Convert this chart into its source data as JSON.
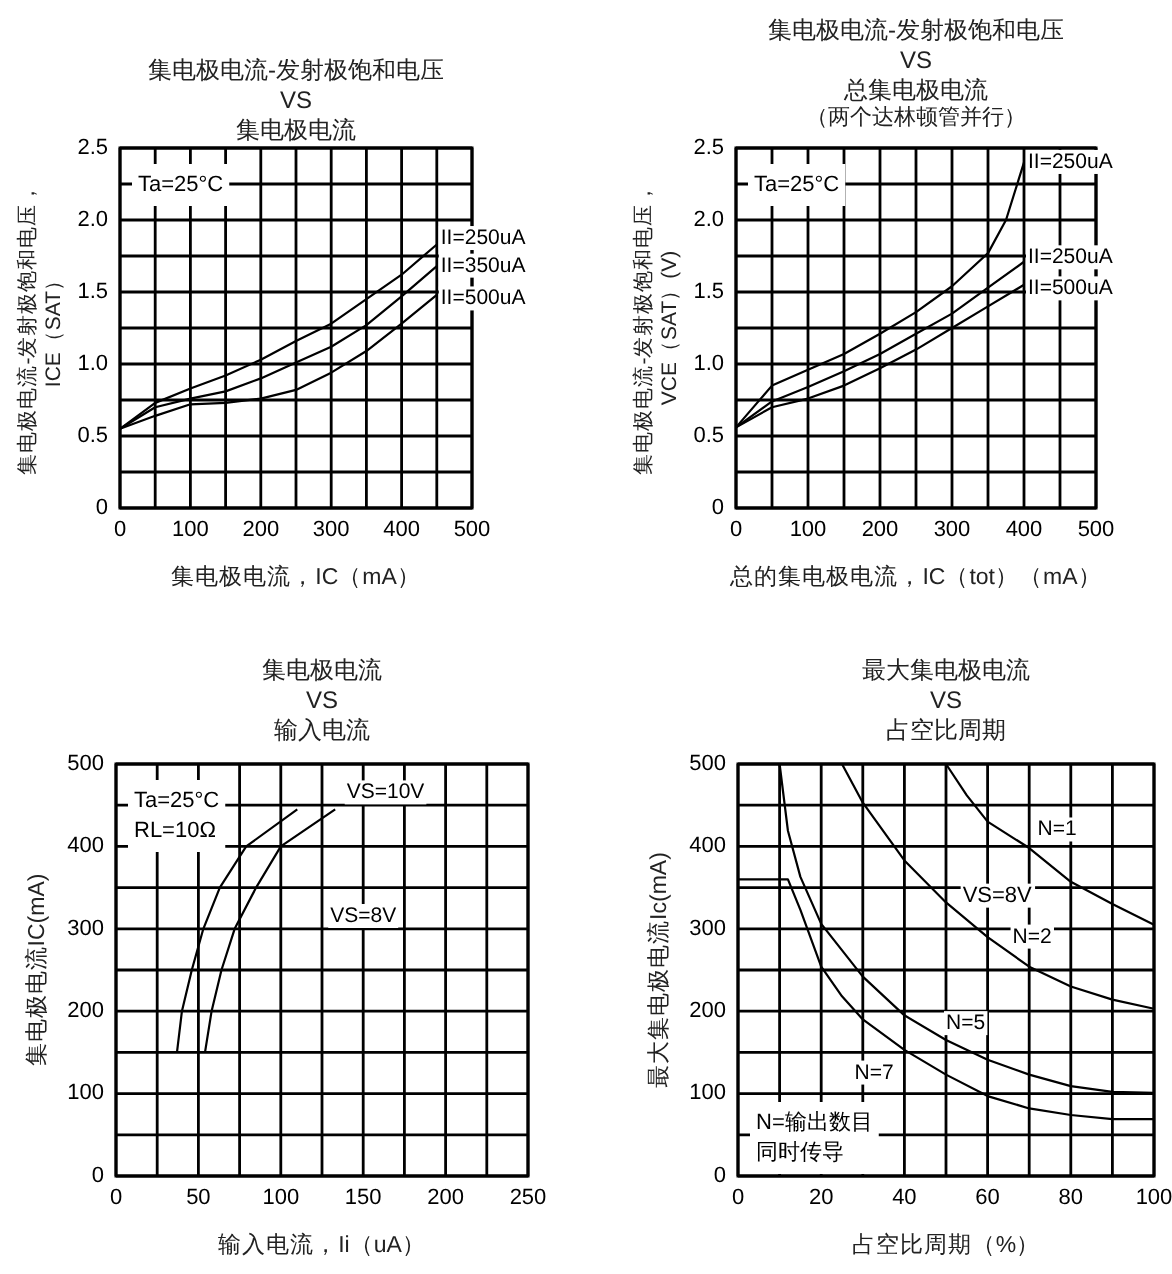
{
  "chart_data": [
    {
      "type": "line",
      "title": "集电极电流-发射极饱和电压\nVS\n集电极电流",
      "xlabel": "集电极电流，IC（mA）",
      "ylabel": "集电极电流-发射极饱和电压，\nICE（SAT）",
      "xlim": [
        0,
        500
      ],
      "xticks": [
        0,
        {
          "value": 50,
          "label": null
        },
        100,
        {
          "value": 150,
          "label": null
        },
        200,
        {
          "value": 250,
          "label": null
        },
        300,
        {
          "value": 350,
          "label": null
        },
        400,
        {
          "value": 450,
          "label": null
        },
        500
      ],
      "ylim": [
        0,
        2.5
      ],
      "yticks": [
        0,
        {
          "value": 0.25,
          "label": null
        },
        0.5,
        {
          "value": 0.75,
          "label": null
        },
        {
          "value": 1,
          "label": "1.0"
        },
        {
          "value": 1.25,
          "label": null
        },
        1.5,
        {
          "value": 1.75,
          "label": null
        },
        {
          "value": 2,
          "label": "2.0"
        },
        {
          "value": 2.25,
          "label": null
        },
        2.5
      ],
      "grid": true,
      "annotations": [
        "Ta=25°C"
      ],
      "x": [
        0,
        50,
        100,
        150,
        200,
        250,
        300,
        350,
        400,
        450
      ],
      "series": [
        {
          "name": "II=250uA",
          "color": "#000000",
          "values": [
            0.55,
            0.73,
            0.83,
            0.92,
            1.03,
            1.16,
            1.28,
            1.45,
            1.62,
            1.83
          ]
        },
        {
          "name": "II=350uA",
          "color": "#000000",
          "values": [
            0.55,
            0.7,
            0.76,
            0.81,
            0.9,
            1.01,
            1.12,
            1.27,
            1.47,
            1.68
          ]
        },
        {
          "name": "II=500uA",
          "color": "#000000",
          "values": [
            0.55,
            0.64,
            0.72,
            0.73,
            0.76,
            0.82,
            0.94,
            1.09,
            1.28,
            1.48
          ]
        }
      ]
    },
    {
      "type": "line",
      "title": "集电极电流-发射极饱和电压\nVS\n总集电极电流",
      "subtitle": "（两个达林顿管并行）",
      "xlabel": "总的集电极电流，IC（tot）（mA）",
      "ylabel": "集电极电流-发射极饱和电压，\nVCE（SAT）(V)",
      "xlim": [
        0,
        500
      ],
      "xticks": [
        0,
        {
          "value": 50,
          "label": null
        },
        100,
        {
          "value": 150,
          "label": null
        },
        200,
        {
          "value": 250,
          "label": null
        },
        300,
        {
          "value": 350,
          "label": null
        },
        400,
        {
          "value": 450,
          "label": null
        },
        500
      ],
      "ylim": [
        0,
        2.5
      ],
      "yticks": [
        0,
        {
          "value": 0.25,
          "label": null
        },
        0.5,
        {
          "value": 0.75,
          "label": null
        },
        {
          "value": 1,
          "label": "1.0"
        },
        {
          "value": 1.25,
          "label": null
        },
        1.5,
        {
          "value": 1.75,
          "label": null
        },
        {
          "value": 2,
          "label": "2.0"
        },
        {
          "value": 2.25,
          "label": null
        },
        2.5
      ],
      "grid": true,
      "annotations": [
        "Ta=25°C"
      ],
      "series": [
        {
          "name": "II=250uA",
          "color": "#000000",
          "x": [
            0,
            50,
            100,
            150,
            200,
            250,
            300,
            350,
            375,
            400
          ],
          "values": [
            0.56,
            0.85,
            0.96,
            1.07,
            1.21,
            1.36,
            1.54,
            1.77,
            2.0,
            2.4
          ]
        },
        {
          "name": "II=250uA",
          "color": "#000000",
          "x": [
            0,
            50,
            100,
            150,
            200,
            250,
            300,
            350,
            400
          ],
          "values": [
            0.56,
            0.74,
            0.84,
            0.95,
            1.07,
            1.21,
            1.35,
            1.53,
            1.71
          ]
        },
        {
          "name": "II=500uA",
          "color": "#000000",
          "x": [
            0,
            50,
            100,
            150,
            200,
            250,
            300,
            350,
            400
          ],
          "values": [
            0.56,
            0.7,
            0.76,
            0.85,
            0.97,
            1.1,
            1.25,
            1.4,
            1.55
          ]
        }
      ]
    },
    {
      "type": "line",
      "title": "集电极电流\nVS\n输入电流",
      "xlabel": "输入电流，Ii（uA）",
      "ylabel": "集电极电流IC(mA)",
      "xlim": [
        0,
        250
      ],
      "xticks": [
        0,
        {
          "value": 25,
          "label": null
        },
        50,
        {
          "value": 75,
          "label": null
        },
        100,
        {
          "value": 125,
          "label": null
        },
        150,
        {
          "value": 175,
          "label": null
        },
        200,
        {
          "value": 225,
          "label": null
        },
        250
      ],
      "ylim": [
        0,
        500
      ],
      "yticks": [
        0,
        {
          "value": 50,
          "label": null
        },
        100,
        {
          "value": 150,
          "label": null
        },
        200,
        {
          "value": 250,
          "label": null
        },
        300,
        {
          "value": 350,
          "label": null
        },
        400,
        {
          "value": 450,
          "label": null
        },
        500
      ],
      "grid": true,
      "annotations": [
        "Ta=25°C",
        "RL=10Ω"
      ],
      "series": [
        {
          "name": "VS=10V",
          "color": "#000000",
          "x": [
            37,
            40,
            46,
            53,
            63,
            79,
            110
          ],
          "values": [
            150,
            200,
            250,
            300,
            350,
            400,
            445
          ]
        },
        {
          "name": "VS=8V",
          "color": "#000000",
          "x": [
            54,
            58,
            64,
            72,
            85,
            100,
            133
          ],
          "values": [
            150,
            200,
            250,
            300,
            350,
            400,
            445
          ]
        }
      ]
    },
    {
      "type": "line",
      "title": "最大集电极电流\nVS\n占空比周期",
      "xlabel": "占空比周期（%）",
      "ylabel": "最大集电极电流Ic(mA)",
      "xlim": [
        0,
        100
      ],
      "xticks": [
        0,
        {
          "value": 10,
          "label": null
        },
        20,
        {
          "value": 30,
          "label": null
        },
        40,
        {
          "value": 50,
          "label": null
        },
        60,
        {
          "value": 70,
          "label": null
        },
        80,
        {
          "value": 90,
          "label": null
        },
        100
      ],
      "ylim": [
        0,
        500
      ],
      "yticks": [
        0,
        {
          "value": 50,
          "label": null
        },
        100,
        {
          "value": 150,
          "label": null
        },
        200,
        {
          "value": 250,
          "label": null
        },
        300,
        {
          "value": 350,
          "label": null
        },
        400,
        {
          "value": 450,
          "label": null
        },
        500
      ],
      "grid": true,
      "annotations": [
        "VS=8V",
        "N=输出数目",
        "同时传导"
      ],
      "series": [
        {
          "name": "N=1",
          "color": "#000000",
          "x": [
            50,
            55,
            60,
            70,
            80,
            90,
            100
          ],
          "values": [
            500,
            462,
            430,
            398,
            357,
            330,
            305
          ]
        },
        {
          "name": "N=2",
          "color": "#000000",
          "x": [
            25,
            30,
            40,
            50,
            60,
            70,
            80,
            90,
            100
          ],
          "values": [
            500,
            453,
            383,
            332,
            290,
            254,
            230,
            214,
            203
          ]
        },
        {
          "name": "N=5",
          "color": "#000000",
          "x": [
            10,
            12,
            15,
            20,
            30,
            40,
            50,
            60,
            70,
            80,
            90,
            100
          ],
          "values": [
            500,
            419,
            363,
            306,
            242,
            195,
            165,
            141,
            123,
            109,
            102,
            101
          ]
        },
        {
          "name": "N=7",
          "color": "#000000",
          "x": [
            0,
            12,
            15,
            20,
            25,
            30,
            40,
            50,
            60,
            70,
            80,
            90,
            100
          ],
          "values": [
            360,
            360,
            323,
            254,
            218,
            190,
            153,
            123,
            97,
            82,
            74,
            69,
            69
          ]
        }
      ]
    }
  ]
}
